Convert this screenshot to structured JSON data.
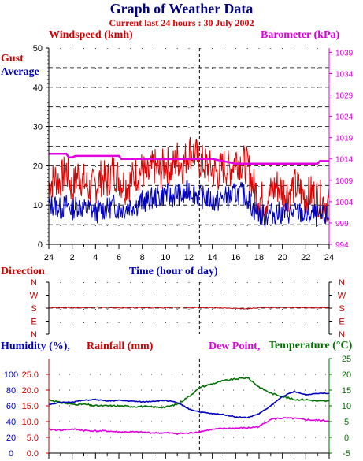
{
  "title": "Graph of Weather Data",
  "subtitle": "Current last 24 hours : 30 July 2002",
  "labels": {
    "windspeed": "Windspeed (kmh)",
    "barometer": "Barometer (kPa)",
    "gust": "Gust",
    "average": "Average",
    "time": "Time (hour of day)",
    "direction": "Direction",
    "humidity": "Humidity (%),",
    "rainfall": "Rainfall (mm)",
    "dewpoint": "Dew Point,",
    "temperature": "Temperature (°C)"
  },
  "colors": {
    "gust": "#e00000",
    "average": "#0000c0",
    "barometer": "#e000e0",
    "direction": "#c00000",
    "humidity": "#0000c0",
    "dewpoint": "#e000e0",
    "temperature": "#007000",
    "rain_axis": "#d00000"
  },
  "chart_data": [
    {
      "type": "line",
      "name": "wind_barometer",
      "x_ticks": [
        "24",
        "2",
        "4",
        "6",
        "8",
        "10",
        "12",
        "14",
        "16",
        "18",
        "20",
        "22",
        "24"
      ],
      "y_left_ticks": [
        "0",
        "10",
        "20",
        "30",
        "40",
        "50"
      ],
      "y_right_ticks": [
        "994",
        "999",
        "1004",
        "1009",
        "1014",
        "1019",
        "1024",
        "1029",
        "1034",
        "1039"
      ],
      "ylim_left": [
        0,
        50
      ],
      "ylim_right": [
        994,
        1040
      ],
      "xlim_hours": [
        0,
        24
      ],
      "current_time_hours": 12.9,
      "series": [
        {
          "name": "Gust",
          "axis": "left",
          "x": [
            0,
            0.5,
            1,
            1.5,
            2,
            2.5,
            3,
            3.5,
            4,
            4.5,
            5,
            5.5,
            6,
            6.5,
            7,
            7.5,
            8,
            8.5,
            9,
            9.5,
            10,
            10.5,
            11,
            11.5,
            12,
            12.5,
            13,
            13.5,
            14,
            14.5,
            15,
            15.5,
            16,
            16.5,
            17,
            17.5,
            18,
            18.5,
            19,
            19.5,
            20,
            20.5,
            21,
            21.5,
            22,
            22.5,
            23,
            23.5,
            24
          ],
          "y": [
            15,
            17,
            16,
            19,
            14,
            18,
            16,
            14,
            15,
            17,
            16,
            19,
            17,
            15,
            16,
            18,
            19,
            17,
            20,
            18,
            21,
            19,
            22,
            20,
            24,
            23,
            21,
            20,
            19,
            18,
            20,
            19,
            22,
            21,
            20,
            15,
            12,
            11,
            13,
            15,
            14,
            13,
            15,
            14,
            12,
            13,
            12,
            11,
            10
          ]
        },
        {
          "name": "Average",
          "axis": "left",
          "x": [
            0,
            0.5,
            1,
            1.5,
            2,
            2.5,
            3,
            3.5,
            4,
            4.5,
            5,
            5.5,
            6,
            6.5,
            7,
            7.5,
            8,
            8.5,
            9,
            9.5,
            10,
            10.5,
            11,
            11.5,
            12,
            12.5,
            13,
            13.5,
            14,
            14.5,
            15,
            15.5,
            16,
            16.5,
            17,
            17.5,
            18,
            18.5,
            19,
            19.5,
            20,
            20.5,
            21,
            21.5,
            22,
            22.5,
            23,
            23.5,
            24
          ],
          "y": [
            10,
            10,
            9,
            10,
            9,
            10,
            9,
            9,
            8,
            9,
            9,
            10,
            9,
            9,
            10,
            10,
            11,
            11,
            12,
            12,
            13,
            12,
            13,
            12,
            14,
            13,
            12,
            12,
            11,
            11,
            12,
            12,
            13,
            13,
            12,
            9,
            8,
            7,
            8,
            8,
            8,
            8,
            8,
            8,
            7,
            8,
            7,
            7,
            7
          ]
        },
        {
          "name": "Barometer",
          "axis": "right",
          "x": [
            0,
            1.5,
            1.7,
            2,
            2.3,
            6,
            6.2,
            14,
            16,
            18,
            23,
            23.2,
            24
          ],
          "y": [
            1015.2,
            1015.2,
            1014.4,
            1014.4,
            1014.7,
            1014.7,
            1014.0,
            1014.0,
            1012.9,
            1012.9,
            1012.9,
            1013.5,
            1013.5
          ]
        }
      ]
    },
    {
      "type": "line",
      "name": "direction",
      "y_ticks": [
        "N",
        "W",
        "S",
        "E",
        "N"
      ],
      "series": [
        {
          "name": "Direction",
          "x": [
            0,
            2,
            3.5,
            4,
            6,
            10,
            11,
            12,
            13,
            14,
            15,
            16,
            17,
            18,
            19,
            20,
            22,
            24
          ],
          "y": [
            183,
            183,
            182,
            188,
            183,
            183,
            188,
            183,
            183,
            183,
            180,
            178,
            176,
            183,
            183,
            184,
            183,
            183
          ]
        }
      ]
    },
    {
      "type": "line",
      "name": "humidity_rain_temp",
      "y_left_ticks": [
        "0",
        "20",
        "40",
        "60",
        "80",
        "100"
      ],
      "y_rain_ticks": [
        "0.0",
        "5.0",
        "10.0",
        "15.0",
        "20.0",
        "25.0"
      ],
      "y_right_ticks": [
        "-5",
        "0",
        "5",
        "10",
        "15",
        "20",
        "25"
      ],
      "ylim_left": [
        0,
        120
      ],
      "ylim_right": [
        -5,
        25
      ],
      "series": [
        {
          "name": "Humidity (%)",
          "axis": "left",
          "x": [
            0,
            1,
            2,
            3,
            4,
            5,
            6,
            7,
            8,
            9,
            10,
            11,
            12,
            13,
            14,
            15,
            16,
            17,
            18,
            19,
            20,
            21,
            22,
            23,
            24
          ],
          "y": [
            62,
            64,
            65,
            67,
            68,
            66,
            67,
            66,
            65,
            66,
            67,
            64,
            56,
            52,
            50,
            49,
            46,
            45,
            50,
            60,
            72,
            78,
            74,
            76,
            76
          ]
        },
        {
          "name": "Rainfall (mm)",
          "axis": "rain",
          "x": [
            0,
            24
          ],
          "y": [
            0,
            0
          ]
        },
        {
          "name": "Dew Point",
          "axis": "right",
          "x": [
            0,
            1,
            2,
            3,
            4,
            5,
            6,
            7,
            8,
            9,
            10,
            11,
            12,
            13,
            14,
            15,
            16,
            17,
            18,
            19,
            20,
            21,
            22,
            23,
            24
          ],
          "y": [
            2.5,
            2.3,
            2.6,
            2.2,
            2.0,
            2.0,
            1.7,
            1.7,
            1.6,
            1.4,
            1.4,
            1.2,
            1.3,
            1.9,
            2.5,
            2.8,
            2.9,
            3.0,
            3.4,
            5.8,
            6.1,
            6.0,
            5.6,
            5.4,
            5.2
          ]
        },
        {
          "name": "Temperature (°C)",
          "axis": "right",
          "x": [
            0,
            1,
            2,
            3,
            4,
            5,
            6,
            7,
            8,
            9,
            10,
            11,
            12,
            13,
            14,
            15,
            16,
            17,
            18,
            19,
            20,
            21,
            22,
            23,
            24
          ],
          "y": [
            12,
            11,
            10.5,
            10.5,
            10,
            10,
            10,
            9.8,
            9.8,
            9.6,
            9.6,
            10.5,
            13,
            16,
            17,
            18,
            18.5,
            19,
            16,
            14,
            13,
            12,
            12,
            11.5,
            11.5
          ]
        }
      ]
    }
  ]
}
